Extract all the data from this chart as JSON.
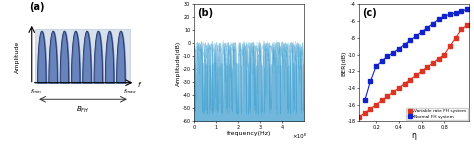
{
  "panel_a": {
    "label": "(a)",
    "xlabel": "f",
    "ylabel": "Amplitude",
    "n_pulses": 8,
    "fmin_label": "f_{min}",
    "fmax_label": "f_{max}",
    "bfh_label": "B_{FH}"
  },
  "panel_b": {
    "label": "(b)",
    "xlabel": "frequency(Hz)",
    "ylabel": "Amplitude(dB)",
    "xlim": [
      0,
      500000000.0
    ],
    "ylim": [
      -60,
      30
    ],
    "yticks": [
      -60,
      -50,
      -40,
      -30,
      -20,
      -10,
      0,
      10,
      20,
      30
    ],
    "xtick_labels": [
      "0",
      "1",
      "2",
      "3",
      "4"
    ],
    "xscale_label": "×10⁸",
    "color": "#3399cc",
    "seed": 7
  },
  "panel_c": {
    "label": "(c)",
    "xlabel": "η",
    "ylabel": "BER(dB)",
    "xlim": [
      0.05,
      1.02
    ],
    "ylim": [
      -18,
      -4
    ],
    "yticks": [
      -18,
      -16,
      -14,
      -12,
      -10,
      -8,
      -6,
      -4
    ],
    "xticks": [
      0.2,
      0.4,
      0.6,
      0.8
    ],
    "red_color": "#dd3322",
    "blue_color": "#1122cc",
    "red_label": "Variable rate FH system",
    "blue_label": "Normal FH system",
    "red_x": [
      0.05,
      0.1,
      0.15,
      0.2,
      0.25,
      0.3,
      0.35,
      0.4,
      0.45,
      0.5,
      0.55,
      0.6,
      0.65,
      0.7,
      0.75,
      0.8,
      0.85,
      0.9,
      0.95,
      1.0
    ],
    "red_y": [
      -17.5,
      -17.0,
      -16.5,
      -16.0,
      -15.5,
      -15.0,
      -14.5,
      -14.0,
      -13.5,
      -13.0,
      -12.5,
      -12.0,
      -11.5,
      -11.0,
      -10.5,
      -10.0,
      -9.0,
      -8.0,
      -7.0,
      -6.5
    ],
    "blue_x": [
      0.1,
      0.15,
      0.2,
      0.25,
      0.3,
      0.35,
      0.4,
      0.45,
      0.5,
      0.55,
      0.6,
      0.65,
      0.7,
      0.75,
      0.8,
      0.85,
      0.9,
      0.95,
      1.0
    ],
    "blue_y": [
      -15.5,
      -13.2,
      -11.4,
      -10.8,
      -10.2,
      -9.8,
      -9.3,
      -8.8,
      -8.3,
      -7.8,
      -7.3,
      -6.8,
      -6.3,
      -5.8,
      -5.4,
      -5.2,
      -5.0,
      -4.8,
      -4.6
    ]
  },
  "background_color": "#f0f0f0",
  "fig_bg": "#ffffff"
}
